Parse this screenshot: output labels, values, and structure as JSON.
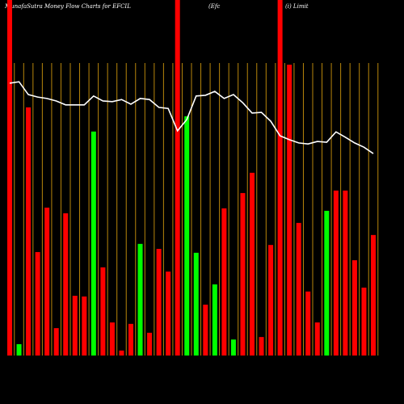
{
  "chart_data": {
    "type": "bar",
    "title": "MunafaSutra  Money Flow  Charts for EFCIL",
    "subtitle": "(Efc",
    "annotation": "(i) Limit",
    "categories": [
      null,
      null,
      null,
      null,
      null,
      null,
      null,
      null,
      null,
      null,
      null,
      null,
      null,
      null,
      null,
      null,
      null,
      null,
      null,
      null,
      null,
      null,
      null,
      null,
      null,
      null,
      null,
      null,
      null,
      null,
      null,
      null,
      null,
      null,
      null,
      null,
      null,
      null,
      null,
      null
    ],
    "values": [
      100,
      3.2,
      69.8,
      29.1,
      41.6,
      7.7,
      40,
      16.8,
      16.6,
      63,
      24.8,
      9.3,
      1.4,
      8.9,
      31.4,
      6.4,
      30,
      23.6,
      100,
      67.3,
      28.9,
      14.3,
      20,
      41.4,
      4.5,
      45.7,
      51.4,
      5.2,
      31.1,
      100,
      81.8,
      37.3,
      18,
      9.3,
      40.7,
      46.4,
      46.4,
      26.8,
      19.1,
      33.9
    ],
    "colors": [
      "#ff0000",
      "#00ff00",
      "#ff0000",
      "#ff0000",
      "#ff0000",
      "#ff0000",
      "#ff0000",
      "#ff0000",
      "#ff0000",
      "#00ff00",
      "#ff0000",
      "#ff0000",
      "#ff0000",
      "#ff0000",
      "#00ff00",
      "#ff0000",
      "#ff0000",
      "#ff0000",
      "#ff0000",
      "#00ff00",
      "#00ff00",
      "#ff0000",
      "#00ff00",
      "#ff0000",
      "#00ff00",
      "#ff0000",
      "#ff0000",
      "#ff0000",
      "#ff0000",
      "#ff0000",
      "#ff0000",
      "#ff0000",
      "#ff0000",
      "#ff0000",
      "#00ff00",
      "#ff0000",
      "#ff0000",
      "#ff0000",
      "#ff0000",
      "#ff0000"
    ],
    "line_values": [
      76.6,
      77.0,
      73.4,
      72.7,
      72.3,
      71.6,
      70.5,
      70.5,
      70.5,
      73.0,
      71.6,
      71.4,
      72.0,
      70.7,
      72.3,
      72.0,
      69.8,
      69.5,
      63.2,
      66.4,
      73.0,
      73.2,
      74.3,
      72.3,
      73.4,
      71.1,
      68.2,
      68.4,
      65.9,
      61.8,
      60.7,
      59.8,
      59.5,
      60.2,
      60.0,
      62.9,
      61.4,
      59.8,
      58.6,
      56.8
    ],
    "line_color": "#ffffff",
    "grid_color": "#b8860b",
    "ylim": [
      0,
      100
    ]
  }
}
